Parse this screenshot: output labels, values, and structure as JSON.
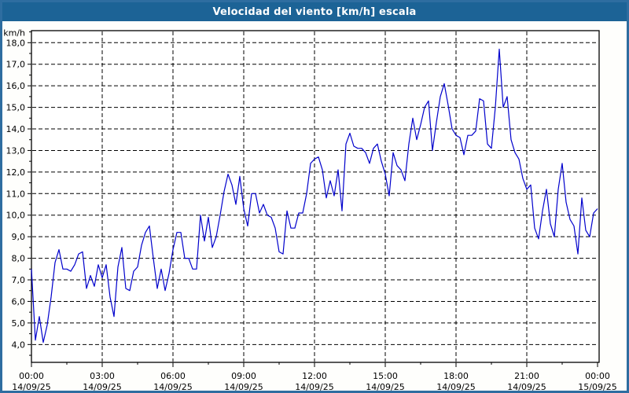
{
  "window": {
    "title": "Velocidad del viento [km/h] escala"
  },
  "colors": {
    "frame_border": "#2E6DA0",
    "title_bar_background": "#1C6396",
    "title_text": "#FFFFFF",
    "plot_background": "#FFFFFF",
    "plot_border": "#000000",
    "grid_line": "#000000",
    "tick_label": "#000000",
    "series_line": "#0000CC"
  },
  "chart_data": {
    "type": "line",
    "title": "Velocidad del viento [km/h] escala",
    "ylabel": "km/h",
    "legend": "none",
    "grid": "dashed",
    "y_axis": {
      "unit_label": "km/h",
      "tick_values": [
        4,
        5,
        6,
        7,
        8,
        9,
        10,
        11,
        12,
        13,
        14,
        15,
        16,
        17,
        18
      ],
      "tick_labels": [
        "4,0",
        "5,0",
        "6,0",
        "7,0",
        "8,0",
        "9,0",
        "10,0",
        "11,0",
        "12,0",
        "13,0",
        "14,0",
        "15,0",
        "16,0",
        "17,0",
        "18,0"
      ],
      "minor_tick_step": 0.5,
      "range": [
        3.2,
        18.6
      ]
    },
    "x_axis": {
      "tick_interval_hours": 3,
      "minor_tick_interval_hours": 1.5,
      "range_minutes": [
        0,
        1440
      ],
      "ticks": [
        {
          "time": "00:00",
          "date": "14/09/25"
        },
        {
          "time": "03:00",
          "date": "14/09/25"
        },
        {
          "time": "06:00",
          "date": "14/09/25"
        },
        {
          "time": "09:00",
          "date": "14/09/25"
        },
        {
          "time": "12:00",
          "date": "14/09/25"
        },
        {
          "time": "15:00",
          "date": "14/09/25"
        },
        {
          "time": "18:00",
          "date": "14/09/25"
        },
        {
          "time": "21:00",
          "date": "14/09/25"
        },
        {
          "time": "00:00",
          "date": "15/09/25"
        }
      ]
    },
    "series": [
      {
        "name": "Velocidad del viento",
        "color": "#0000CC",
        "x_minutes_start": 0,
        "x_minutes_step": 10,
        "values": [
          7.5,
          4.2,
          5.3,
          4.1,
          4.9,
          6.2,
          7.8,
          8.4,
          7.5,
          7.5,
          7.4,
          7.7,
          8.2,
          8.3,
          6.6,
          7.2,
          6.7,
          7.7,
          7.1,
          7.7,
          6.2,
          5.3,
          7.6,
          8.5,
          6.6,
          6.5,
          7.4,
          7.6,
          8.6,
          9.2,
          9.5,
          8.0,
          6.6,
          7.5,
          6.5,
          7.3,
          8.4,
          9.2,
          9.2,
          8.0,
          8.0,
          7.5,
          7.5,
          10.0,
          8.8,
          9.9,
          8.5,
          9.0,
          10.0,
          11.1,
          11.9,
          11.4,
          10.5,
          11.8,
          10.3,
          9.5,
          11.0,
          11.0,
          10.1,
          10.5,
          10.0,
          9.9,
          9.4,
          8.3,
          8.2,
          10.2,
          9.4,
          9.4,
          10.1,
          10.1,
          11.0,
          12.4,
          12.6,
          12.7,
          12.1,
          10.8,
          11.6,
          10.9,
          12.1,
          10.2,
          13.3,
          13.8,
          13.2,
          13.1,
          13.1,
          12.9,
          12.4,
          13.1,
          13.3,
          12.5,
          11.9,
          10.9,
          12.9,
          12.3,
          12.1,
          11.6,
          13.3,
          14.5,
          13.5,
          14.2,
          15.0,
          15.3,
          13.0,
          14.3,
          15.5,
          16.1,
          15.1,
          14.0,
          13.7,
          13.6,
          12.8,
          13.7,
          13.7,
          13.9,
          15.4,
          15.3,
          13.3,
          13.1,
          15.0,
          17.7,
          15.0,
          15.5,
          13.5,
          12.9,
          12.6,
          11.7,
          11.2,
          11.4,
          9.4,
          8.9,
          10.2,
          11.2,
          9.6,
          9.0,
          11.2,
          12.4,
          10.6,
          9.8,
          9.5,
          8.2,
          10.8,
          9.3,
          9.0,
          10.1,
          10.3
        ]
      }
    ]
  }
}
